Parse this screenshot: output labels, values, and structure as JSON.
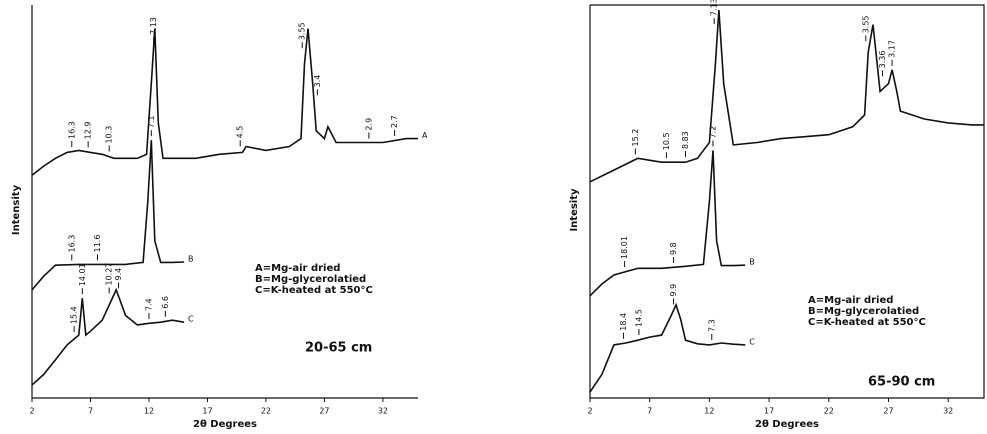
{
  "chart_data": [
    {
      "type": "line",
      "x_label": "2θ Degrees",
      "y_label": "Intensity",
      "xlim": [
        2,
        35
      ],
      "ylim": [
        0,
        100
      ],
      "xticks": [
        2,
        7,
        12,
        17,
        22,
        27,
        32
      ],
      "frame": false,
      "color": "#111111",
      "legend_text": [
        "A=Mg-air dried",
        "B=Mg-glycerolatied",
        "C=K-heated at 550°C"
      ],
      "depth": "20-65 cm",
      "series": [
        {
          "name": "A",
          "x": [
            2,
            3,
            4,
            5,
            6,
            7,
            8,
            9,
            10,
            11,
            11.8,
            12.2,
            12.5,
            12.8,
            13.2,
            14,
            16,
            18,
            20,
            20.3,
            22,
            24,
            25,
            25.3,
            25.6,
            26,
            26.3,
            27,
            27.3,
            28,
            30,
            32,
            34,
            35
          ],
          "values": [
            56.7,
            59,
            61,
            62.5,
            63,
            62.5,
            62,
            61,
            61,
            61,
            62,
            80,
            94,
            70,
            61,
            61,
            61,
            62,
            62.5,
            64,
            63,
            64,
            66,
            85,
            94,
            80,
            68,
            66,
            69,
            65,
            65,
            65,
            66,
            66
          ],
          "peaks": [
            {
              "label": "16.3",
              "x": 5.4
            },
            {
              "label": "12.9",
              "x": 6.8
            },
            {
              "label": "10.3",
              "x": 8.6
            },
            {
              "label": "7.13",
              "x": 12.4
            },
            {
              "label": "4.5",
              "x": 19.8
            },
            {
              "label": "3.55",
              "x": 25.1
            },
            {
              "label": "3.4",
              "x": 26.4
            },
            {
              "label": "2.9",
              "x": 30.8
            },
            {
              "label": "2.7",
              "x": 33
            }
          ]
        },
        {
          "name": "B",
          "x": [
            2,
            3,
            4,
            6,
            8,
            10,
            11.5,
            11.9,
            12.2,
            12.5,
            13,
            14,
            15
          ],
          "values": [
            27.5,
            31,
            33.8,
            34,
            34,
            34,
            34.5,
            50,
            65.6,
            40,
            34.5,
            34.5,
            34.6
          ],
          "peaks": [
            {
              "label": "16.3",
              "x": 5.4
            },
            {
              "label": "11.6",
              "x": 7.6
            },
            {
              "label": "7.1",
              "x": 12.2
            }
          ]
        },
        {
          "name": "C",
          "x": [
            2,
            3,
            4,
            5,
            6,
            6.3,
            6.6,
            7,
            8,
            9.2,
            10,
            11,
            12,
            13,
            14,
            15
          ],
          "values": [
            3.3,
            6,
            9.7,
            13.5,
            16,
            25.4,
            16,
            17,
            19.8,
            27.5,
            21,
            18.6,
            19,
            19.3,
            19.8,
            19.3
          ],
          "peaks": [
            {
              "label": "15.4",
              "x": 5.6
            },
            {
              "label": "14.01",
              "x": 6.3
            },
            {
              "label": "10.27",
              "x": 8.6
            },
            {
              "label": "9.4",
              "x": 9.4
            },
            {
              "label": "7.4",
              "x": 12
            },
            {
              "label": "6.6",
              "x": 13.4
            }
          ]
        }
      ]
    },
    {
      "type": "line",
      "x_label": "2θ Degrees",
      "y_label": "Intesity",
      "xlim": [
        2,
        35
      ],
      "ylim": [
        0,
        100
      ],
      "xticks": [
        2,
        7,
        12,
        17,
        22,
        27,
        32
      ],
      "frame": true,
      "color": "#111111",
      "legend_text": [
        "A=Mg-air dried",
        "B=Mg-glycerolatied",
        "C=K-heated at 550°C"
      ],
      "depth": "65-90 cm",
      "series": [
        {
          "name": "A",
          "x": [
            2,
            4,
            6,
            8,
            10,
            11,
            12,
            12.5,
            12.8,
            13.2,
            14,
            16,
            18,
            20,
            22,
            24,
            25,
            25.3,
            25.7,
            26.3,
            27,
            27.3,
            27.7,
            28,
            30,
            32,
            34,
            35
          ],
          "values": [
            55,
            58,
            61,
            60,
            60,
            61,
            65,
            85,
            98.7,
            80,
            64.4,
            65,
            66,
            66.5,
            67,
            69,
            72,
            88,
            95,
            78,
            80,
            83.5,
            78,
            73,
            71,
            70,
            69.5,
            69.5
          ],
          "peaks": [
            {
              "label": "15.2",
              "x": 5.8
            },
            {
              "label": "10.5",
              "x": 8.4
            },
            {
              "label": "8.83",
              "x": 10.0
            },
            {
              "label": "7.13",
              "x": 12.4
            },
            {
              "label": "3.55",
              "x": 25.1
            },
            {
              "label": "3.36",
              "x": 26.5
            },
            {
              "label": "3.17",
              "x": 27.3
            }
          ]
        },
        {
          "name": "B",
          "x": [
            2,
            3,
            4,
            6,
            8,
            10,
            11.5,
            12,
            12.3,
            12.6,
            13,
            14,
            15
          ],
          "values": [
            26,
            29,
            31.3,
            33,
            33,
            33.5,
            34,
            50,
            63,
            40,
            33.7,
            33.7,
            33.8
          ],
          "peaks": [
            {
              "label": "18.01",
              "x": 4.9
            },
            {
              "label": "9.8",
              "x": 9.0
            },
            {
              "label": "7.2",
              "x": 12.3
            }
          ]
        },
        {
          "name": "C",
          "x": [
            2,
            3,
            4,
            5,
            6,
            7,
            8,
            8.8,
            9.2,
            9.6,
            10,
            11,
            12,
            13,
            14,
            15
          ],
          "values": [
            1.5,
            6,
            13.5,
            14,
            14.7,
            15.5,
            16,
            21,
            23.7,
            20,
            14.7,
            13.8,
            13.5,
            14,
            13.7,
            13.5
          ],
          "peaks": [
            {
              "label": "18.4",
              "x": 4.8
            },
            {
              "label": "14.5",
              "x": 6.1
            },
            {
              "label": "9.9",
              "x": 9.0
            },
            {
              "label": "7.3",
              "x": 12.2
            }
          ]
        }
      ]
    }
  ]
}
